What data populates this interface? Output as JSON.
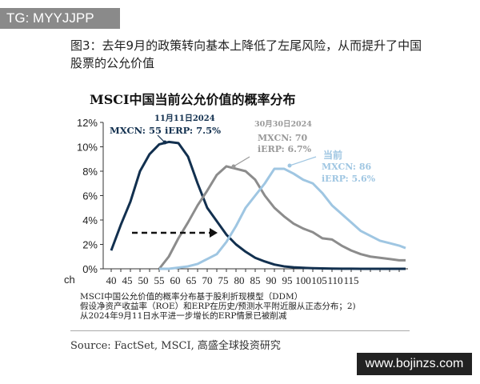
{
  "watermark_top": "TG: MYYJJPP",
  "caption": "图3：去年9月的政策转向基本上降低了左尾风险，从而提升了中国股票的公允价值",
  "chart_data": {
    "type": "line",
    "title": "MSCI中国当前公允价值的概率分布",
    "xlabel": "",
    "ylabel": "",
    "ylim": [
      0,
      12
    ],
    "yticks": [
      "0%",
      "2%",
      "4%",
      "6%",
      "8%",
      "10%",
      "12%"
    ],
    "xticks": [
      "40",
      "45",
      "50",
      "55",
      "60",
      "65",
      "70",
      "75",
      "80",
      "85",
      "90",
      "95",
      "100",
      "105",
      "110",
      "115"
    ],
    "grid": false,
    "series": [
      {
        "color": "#12304f",
        "annotation": [
          "11月11日2024",
          "MXCN: 55 iERP: 7.5%"
        ],
        "x": [
          40,
          43,
          46,
          49,
          52,
          55,
          58,
          61,
          64,
          67,
          70,
          73,
          76,
          79,
          82,
          85,
          88,
          91,
          94,
          97,
          100,
          103,
          106,
          109,
          112,
          115,
          118,
          121,
          124,
          127,
          130,
          132
        ],
        "y": [
          1.5,
          3.6,
          5.5,
          8.0,
          9.4,
          10.2,
          10.4,
          10.3,
          9.2,
          7.0,
          5.0,
          3.9,
          2.8,
          2.0,
          1.4,
          0.9,
          0.6,
          0.35,
          0.2,
          0.12,
          0.08,
          0.05,
          0.03,
          0.02,
          0.01,
          0.01,
          0,
          0,
          0,
          0,
          0,
          0
        ]
      },
      {
        "color": "#8c8c8c",
        "annotation": [
          "30月30日2024",
          "MXCN: 70",
          "iERP: 6.7%"
        ],
        "x": [
          55,
          58,
          61,
          64,
          67,
          70,
          73,
          76,
          79,
          82,
          85,
          88,
          91,
          94,
          97,
          100,
          103,
          106,
          109,
          112,
          115,
          118,
          121,
          124,
          127,
          130,
          132
        ],
        "y": [
          0,
          1.0,
          2.5,
          3.8,
          5.2,
          6.4,
          7.7,
          8.4,
          8.2,
          8.0,
          7.3,
          6.0,
          5.0,
          4.3,
          3.7,
          3.3,
          3.0,
          2.5,
          2.4,
          1.9,
          1.5,
          1.2,
          1.0,
          0.9,
          0.8,
          0.7,
          0.7
        ]
      },
      {
        "color": "#9fc6e2",
        "annotation": [
          "当前",
          "MXCN: 86",
          "iERP: 5.6%"
        ],
        "x": [
          55,
          58,
          61,
          64,
          67,
          70,
          73,
          76,
          79,
          82,
          85,
          88,
          91,
          94,
          97,
          100,
          103,
          106,
          109,
          112,
          115,
          118,
          121,
          124,
          127,
          130,
          132
        ],
        "y": [
          0,
          0,
          0.1,
          0.2,
          0.4,
          0.8,
          1.2,
          2.2,
          3.5,
          5.0,
          6.0,
          7.0,
          8.2,
          8.2,
          7.8,
          7.3,
          7.0,
          6.2,
          5.2,
          4.5,
          3.8,
          3.1,
          2.7,
          2.3,
          2.1,
          1.9,
          1.7
        ]
      }
    ]
  },
  "axis_unit": "ch",
  "footnotes": [
    "MSCI中国公允价值的概率分布基于股利折现模型（DDM）",
    "假设净资产收益率（ROE）和ERP在历史/预测水平附近服从正态分布；2)",
    "从2024年9月11日水平进一步增长的ERP情景已被削减"
  ],
  "source": "Source: FactSet, MSCI, 高盛全球投资研究",
  "watermark_bottom": "www.bojinzs.com"
}
